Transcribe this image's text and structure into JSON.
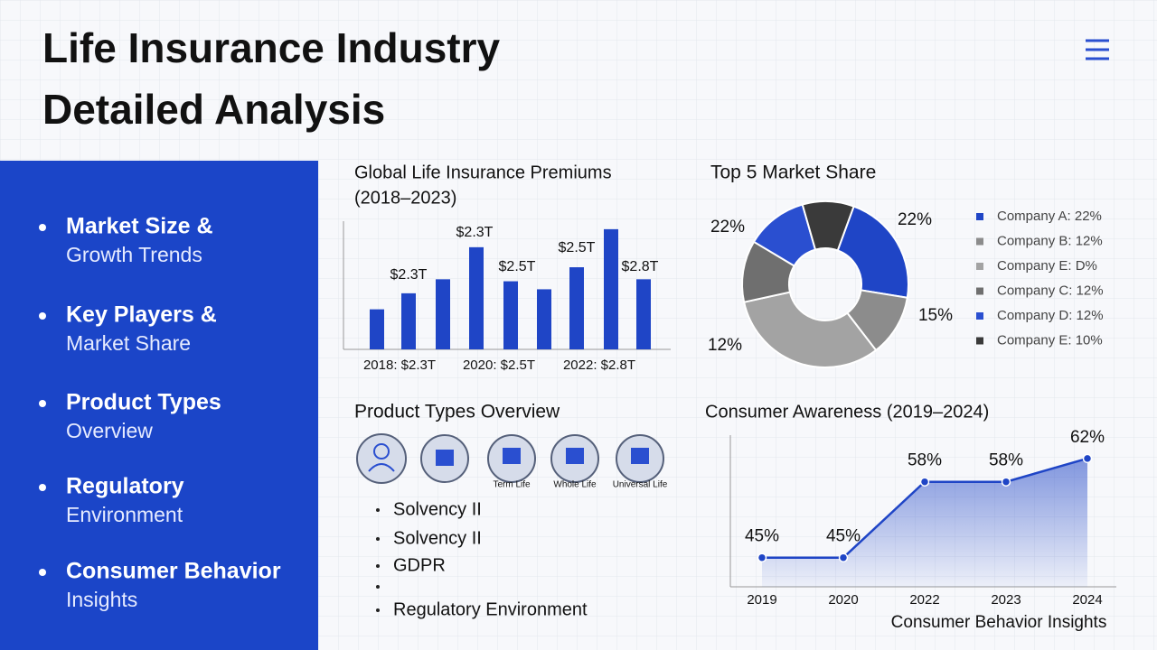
{
  "header": {
    "title_lines": [
      "Life Insurance Industry",
      "Detailed Analysis"
    ]
  },
  "sidebar": {
    "items": [
      {
        "title": "Market Size &",
        "subtitle": "Growth Trends"
      },
      {
        "title": "Key Players &",
        "subtitle": "Market Share"
      },
      {
        "title": "Product Types",
        "subtitle": "Overview"
      },
      {
        "title": "Regulatory",
        "subtitle": "Environment"
      },
      {
        "title": "Consumer Behavior",
        "subtitle": "Insights"
      }
    ]
  },
  "chart_data": [
    {
      "type": "bar",
      "title_lines": [
        "Global Life Insurance Premiums",
        "(2018–2023)"
      ],
      "categories": [
        "2018: $2.3T",
        null,
        null,
        "2020: $2.5T",
        null,
        null,
        "2022: $2.8T",
        null,
        null
      ],
      "values": [
        1.0,
        1.4,
        1.75,
        2.55,
        1.7,
        1.5,
        2.05,
        3.0,
        1.75
      ],
      "color": "#1f45c6",
      "ylim": [
        0,
        3.2
      ],
      "annotations": [
        "$2.3T",
        "$2.3T",
        "$2.5T",
        "$2.5T",
        "$2.8T"
      ]
    },
    {
      "type": "pie",
      "title": "Top 5 Market Share",
      "categories": [
        "Company A: 22%",
        "Company B: 12%",
        "Company E: D%",
        "Company C: 12%",
        "Company D: 12%",
        "Company E: 10%"
      ],
      "values": [
        22,
        12,
        32,
        12,
        12,
        10
      ],
      "colors": [
        "#1f45c6",
        "#8c8c8c",
        "#a3a3a3",
        "#6f6f6f",
        "#2a4fd0",
        "#3a3a3a"
      ],
      "annotations": [
        "22%",
        "22%",
        "15%",
        "12%"
      ]
    },
    {
      "type": "line",
      "title": "Consumer Awareness (2019–2024)",
      "categories": [
        "2019",
        "2020",
        "2022",
        "2023",
        "2024"
      ],
      "series": [
        {
          "color": "#1f45c6",
          "values": [
            45,
            45,
            58,
            58,
            62
          ],
          "value_labels": [
            "45%",
            "45%",
            "58%",
            "58%",
            "62%"
          ]
        }
      ],
      "ylim": [
        40,
        66
      ],
      "caption": "Consumer Behavior Insights"
    }
  ],
  "products": {
    "title": "Product Types Overview",
    "labels": [
      "Term Life",
      "Whole Life",
      "Universal Life"
    ]
  },
  "regulatory": {
    "items": [
      "Solvency II",
      "Solvency II",
      "GDPR",
      "Regulatory Environment"
    ]
  }
}
